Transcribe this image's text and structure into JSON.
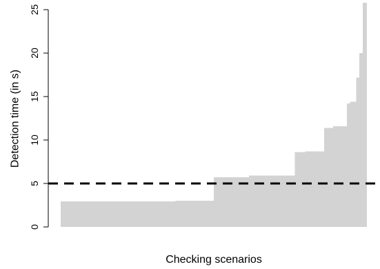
{
  "chart_data": {
    "type": "area",
    "title": "",
    "xlabel": "Checking scenarios",
    "ylabel": "Detection time (in s)",
    "ylim": [
      0,
      25
    ],
    "yticks": [
      0,
      5,
      10,
      15,
      20,
      25
    ],
    "grid": false,
    "legend": "none",
    "fill_color": "#d3d3d3",
    "threshold": {
      "value": 5,
      "style": "dashed",
      "color": "#000000"
    },
    "steps": [
      {
        "x_end": 0.375,
        "y": 2.95
      },
      {
        "x_end": 0.5,
        "y": 3.0
      },
      {
        "x_end": 0.615,
        "y": 5.7
      },
      {
        "x_end": 0.765,
        "y": 5.9
      },
      {
        "x_end": 0.8,
        "y": 8.6
      },
      {
        "x_end": 0.86,
        "y": 8.7
      },
      {
        "x_end": 0.89,
        "y": 11.4
      },
      {
        "x_end": 0.935,
        "y": 11.6
      },
      {
        "x_end": 0.945,
        "y": 14.2
      },
      {
        "x_end": 0.965,
        "y": 14.4
      },
      {
        "x_end": 0.975,
        "y": 17.2
      },
      {
        "x_end": 0.987,
        "y": 20.0
      },
      {
        "x_end": 1.0,
        "y": 25.8
      }
    ]
  }
}
